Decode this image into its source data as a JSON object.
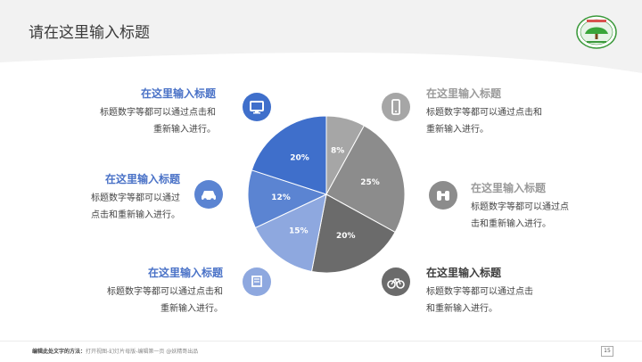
{
  "slide": {
    "title": "请在这里输入标题",
    "page_number": "15"
  },
  "footer": {
    "tip_label": "编辑此处文字的方法：",
    "tip_text": "打开视图-幻灯片母版-编辑第一页 @妖精哥出品"
  },
  "blocks": [
    {
      "title": "在这里输入标题",
      "line1": "标题数字等都可以通过点击和",
      "line2": "重新输入进行。"
    },
    {
      "title": "在这里输入标题",
      "line1": "标题数字等都可以通过",
      "line2": "点击和重新输入进行。"
    },
    {
      "title": "在这里输入标题",
      "line1": "标题数字等都可以通过点击和",
      "line2": "重新输入进行。"
    },
    {
      "title": "在这里输入标题",
      "line1": "标题数字等都可以通过点击和",
      "line2": "重新输入进行。"
    },
    {
      "title": "在这里输入标题",
      "line1": "标题数字等都可以通过点",
      "line2": "击和重新输入进行。"
    },
    {
      "title": "在这里输入标题",
      "line1": "标题数字等都可以通过点击",
      "line2": "和重新输入进行。"
    }
  ],
  "icons": [
    "monitor-icon",
    "car-icon",
    "book-icon",
    "phone-icon",
    "binoculars-icon",
    "bicycle-icon"
  ],
  "chart_data": {
    "type": "pie",
    "title": "",
    "start": "12 o'clock, clockwise",
    "slices": [
      {
        "label": "8%",
        "value": 8,
        "color": "#a6a6a6"
      },
      {
        "label": "25%",
        "value": 25,
        "color": "#8c8c8c"
      },
      {
        "label": "20%",
        "value": 20,
        "color": "#6b6b6b"
      },
      {
        "label": "15%",
        "value": 15,
        "color": "#8ea8df"
      },
      {
        "label": "12%",
        "value": 12,
        "color": "#5b84d2"
      },
      {
        "label": "20%",
        "value": 20,
        "color": "#3f6fcb"
      }
    ]
  },
  "colors": {
    "blue_accent": "#4a72c7",
    "gray_heading": "#9a9a9a",
    "dark_heading": "#3d3d3d"
  }
}
